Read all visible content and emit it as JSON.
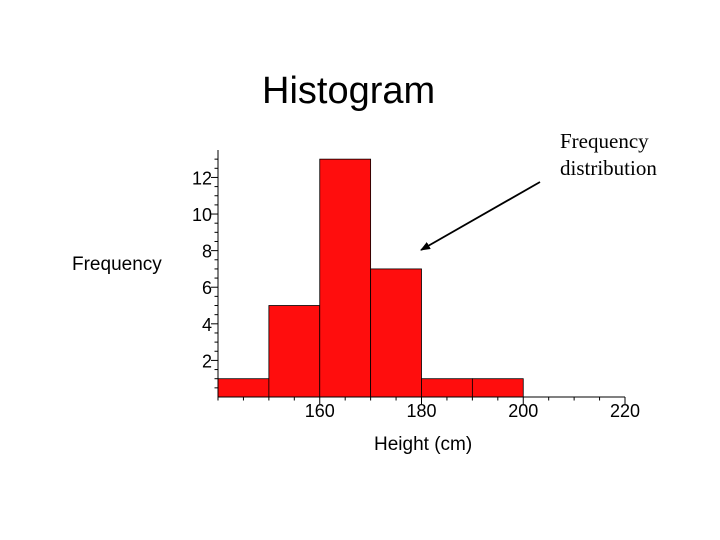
{
  "chart_data": {
    "type": "bar",
    "title": "Histogram",
    "xlabel": "Height (cm)",
    "ylabel": "Frequency",
    "annotation": "Frequency distribution",
    "bins": [
      {
        "start": 140,
        "end": 150,
        "value": 1
      },
      {
        "start": 150,
        "end": 160,
        "value": 5
      },
      {
        "start": 160,
        "end": 170,
        "value": 13
      },
      {
        "start": 170,
        "end": 180,
        "value": 7
      },
      {
        "start": 180,
        "end": 190,
        "value": 1
      },
      {
        "start": 190,
        "end": 200,
        "value": 1
      }
    ],
    "xticks": [
      160,
      180,
      200,
      220
    ],
    "yticks": [
      2,
      4,
      6,
      8,
      10,
      12
    ],
    "xlim": [
      140,
      220
    ],
    "ylim": [
      0,
      13.5
    ],
    "grid": false,
    "bar_color": "#ff0d0d"
  }
}
